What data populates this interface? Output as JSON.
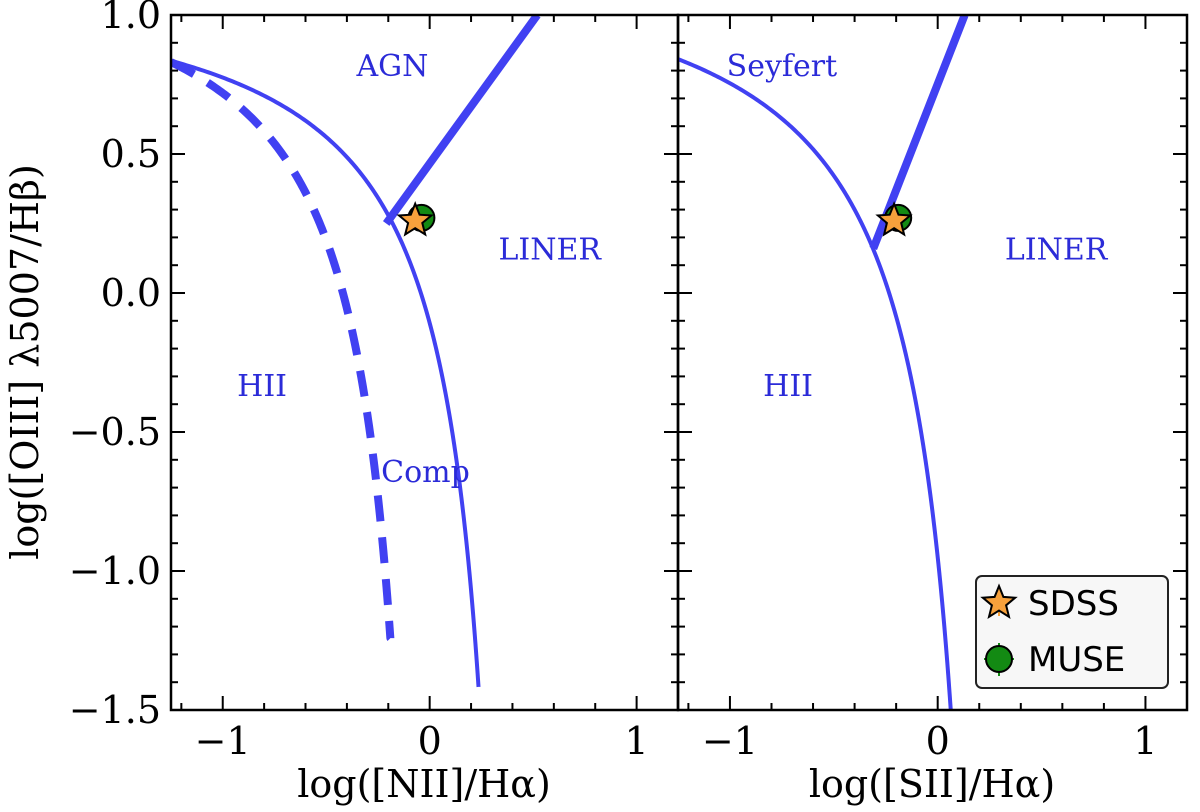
{
  "chart_data": [
    {
      "type": "scatter",
      "panel": "left",
      "xlabel": "log([NII]/Hα)",
      "ylabel": "log([OIII] λ5007/Hβ)",
      "xlim": [
        -1.25,
        1.2
      ],
      "ylim": [
        -1.5,
        1.0
      ],
      "xticks": [
        -1,
        0,
        1
      ],
      "xtick_labels": [
        "−1",
        "0",
        "1"
      ],
      "yticks": [
        1.0,
        0.5,
        0.0,
        -0.5,
        -1.0,
        -1.5
      ],
      "ytick_labels": [
        "1.0",
        "0.5",
        "0.0",
        "−0.5",
        "−1.0",
        "−1.5"
      ],
      "grid": false,
      "region_labels": [
        {
          "text": "AGN",
          "x": -0.18,
          "y": 0.78
        },
        {
          "text": "LINER",
          "x": 0.58,
          "y": 0.12
        },
        {
          "text": "HII",
          "x": -0.81,
          "y": -0.37
        },
        {
          "text": "Comp",
          "x": -0.02,
          "y": -0.68
        }
      ],
      "lines": [
        {
          "name": "Kewley max starburst",
          "style": "solid",
          "func": "0.61/(x-0.47)+1.19",
          "x_range": [
            -1.25,
            0.236
          ]
        },
        {
          "name": "Kauffmann",
          "style": "dashed",
          "func": "0.61/(x-0.05)+1.3",
          "x_range": [
            -1.25,
            -0.19
          ]
        },
        {
          "name": "Seyfert/LINER division",
          "style": "thick",
          "points": [
            [
              -0.21,
              0.25
            ],
            [
              0.52,
              1.0
            ]
          ]
        }
      ],
      "series": [
        {
          "name": "SDSS",
          "marker": "star",
          "color": "#f7a13c",
          "x": -0.07,
          "y": 0.26
        },
        {
          "name": "MUSE",
          "marker": "circle",
          "color": "#138a13",
          "x": -0.04,
          "y": 0.27
        }
      ]
    },
    {
      "type": "scatter",
      "panel": "right",
      "xlabel": "log([SII]/Hα)",
      "ylabel": "",
      "xlim": [
        -1.25,
        1.2
      ],
      "ylim": [
        -1.5,
        1.0
      ],
      "xticks": [
        -1,
        0,
        1
      ],
      "xtick_labels": [
        "−1",
        "0",
        "1"
      ],
      "grid": false,
      "region_labels": [
        {
          "text": "Seyfert",
          "x": -0.75,
          "y": 0.78
        },
        {
          "text": "LINER",
          "x": 0.57,
          "y": 0.12
        },
        {
          "text": "HII",
          "x": -0.72,
          "y": -0.37
        }
      ],
      "lines": [
        {
          "name": "Kewley max starburst",
          "style": "solid",
          "func": "0.72/(x-0.32)+1.30",
          "x_range": [
            -1.25,
            0.07
          ]
        },
        {
          "name": "Seyfert/LINER division",
          "style": "thick",
          "points": [
            [
              -0.31,
              0.16
            ],
            [
              0.13,
              1.0
            ]
          ]
        }
      ],
      "series": [
        {
          "name": "SDSS",
          "marker": "star",
          "color": "#f7a13c",
          "x": -0.21,
          "y": 0.26
        },
        {
          "name": "MUSE",
          "marker": "circle",
          "color": "#138a13",
          "x": -0.19,
          "y": 0.27
        }
      ]
    }
  ],
  "legend": {
    "placement": "lower-right",
    "entries": [
      {
        "label": "SDSS",
        "marker": "star",
        "color": "#f7a13c"
      },
      {
        "label": "MUSE",
        "marker": "circle",
        "color": "#138a13"
      }
    ]
  },
  "colors": {
    "lines": "#4141f2",
    "text": "#2b2bd8"
  }
}
